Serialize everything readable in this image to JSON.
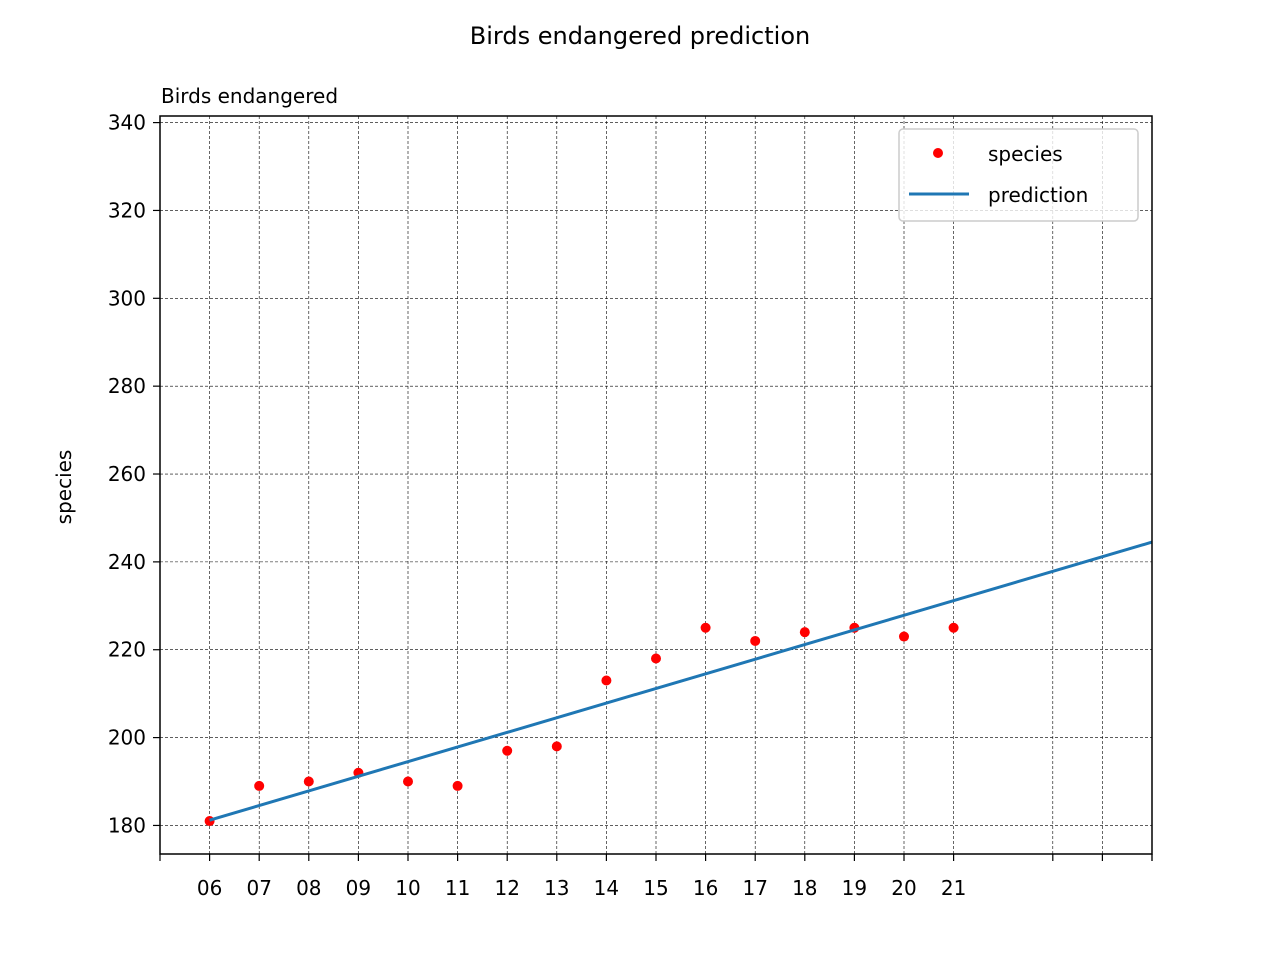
{
  "figure_title": "Birds endangered prediction",
  "chart_data": {
    "type": "scatter",
    "title": "Birds endangered",
    "xlabel": "",
    "ylabel": "species",
    "categories": [
      "06",
      "07",
      "08",
      "09",
      "10",
      "11",
      "12",
      "13",
      "14",
      "15",
      "16",
      "17",
      "18",
      "19",
      "20",
      "21"
    ],
    "x_domain": [
      -1,
      19
    ],
    "extra_ticks": [
      17,
      18,
      19
    ],
    "ylim": [
      173.5,
      341.5
    ],
    "yticks": [
      180,
      200,
      220,
      240,
      260,
      280,
      300,
      320,
      340
    ],
    "series": [
      {
        "name": "species",
        "kind": "points",
        "color": "#ff0000",
        "values": [
          181,
          189,
          190,
          192,
          190,
          189,
          197,
          198,
          213,
          218,
          225,
          222,
          224,
          225,
          223,
          225
        ]
      },
      {
        "name": "prediction",
        "kind": "line",
        "color": "#1f77b4",
        "x": [
          0,
          19
        ],
        "y": [
          181.2,
          244.5
        ]
      }
    ],
    "grid": true,
    "grid_color": "#000000",
    "legend_position": "top-right"
  }
}
